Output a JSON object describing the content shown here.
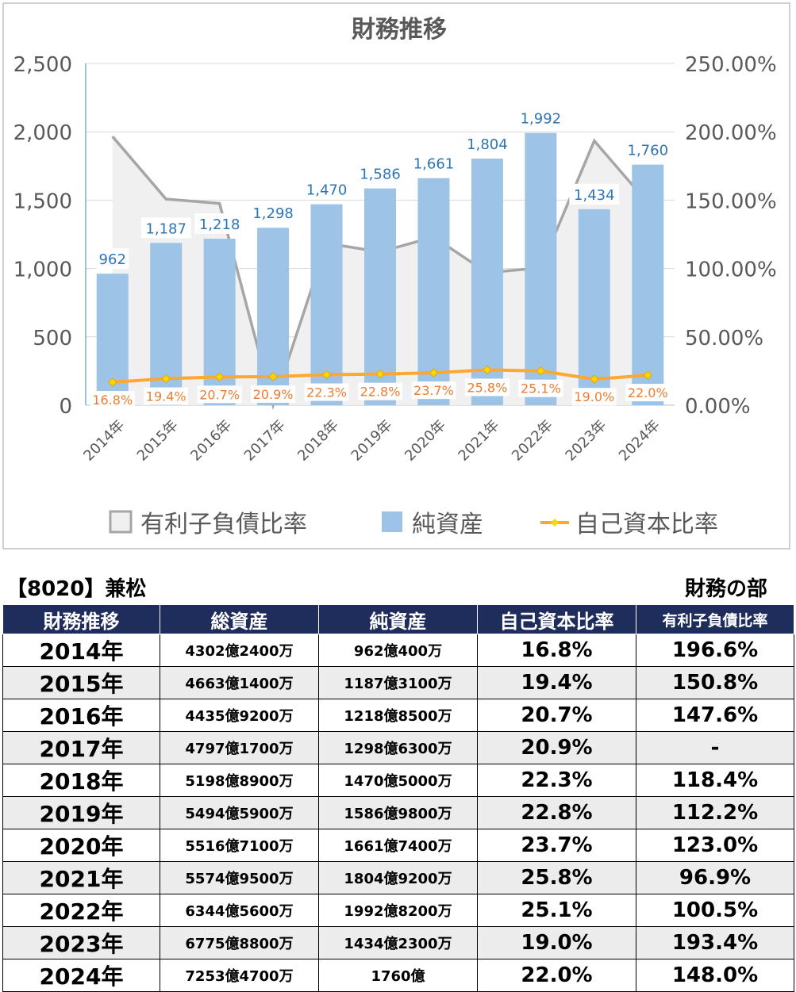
{
  "chart_data": {
    "type": "bar",
    "title": "財務推移",
    "categories": [
      "2014年",
      "2015年",
      "2016年",
      "2017年",
      "2018年",
      "2019年",
      "2020年",
      "2021年",
      "2022年",
      "2023年",
      "2024年"
    ],
    "left_axis": {
      "ticks": [
        "0",
        "500",
        "1,000",
        "1,500",
        "2,000",
        "2,500"
      ],
      "range": [
        0,
        2500
      ]
    },
    "right_axis": {
      "ticks": [
        "0.00%",
        "50.00%",
        "100.00%",
        "150.00%",
        "200.00%",
        "250.00%"
      ],
      "range": [
        0,
        250
      ]
    },
    "series": [
      {
        "name": "有利子負債比率",
        "kind": "area",
        "axis": "right",
        "color": "#a6a6a6",
        "fill": "#f0f0f0",
        "values": [
          196.6,
          150.8,
          147.6,
          0,
          118.4,
          112.2,
          123.0,
          96.9,
          100.5,
          193.4,
          148.0
        ]
      },
      {
        "name": "純資産",
        "kind": "bar",
        "axis": "left",
        "color": "#9dc3e6",
        "values": [
          962,
          1187,
          1218,
          1298,
          1470,
          1586,
          1661,
          1804,
          1992,
          1434,
          1760
        ],
        "labels": [
          "962",
          "1,187",
          "1,218",
          "1,298",
          "1,470",
          "1,586",
          "1,661",
          "1,804",
          "1,992",
          "1,434",
          "1,760"
        ],
        "label_color": "#2e75b6"
      },
      {
        "name": "自己資本比率",
        "kind": "line",
        "axis": "right",
        "color": "#ffa733",
        "marker": "#ffd700",
        "values": [
          16.8,
          19.4,
          20.7,
          20.9,
          22.3,
          22.8,
          23.7,
          25.8,
          25.1,
          19.0,
          22.0
        ],
        "labels": [
          "16.8%",
          "19.4%",
          "20.7%",
          "20.9%",
          "22.3%",
          "22.8%",
          "23.7%",
          "25.8%",
          "25.1%",
          "19.0%",
          "22.0%"
        ],
        "label_color": "#ed7d31"
      }
    ],
    "legend_position": "bottom",
    "grid": true
  },
  "table": {
    "company": "【8020】兼松",
    "section": "財務の部",
    "headers": [
      "財務推移",
      "総資産",
      "純資産",
      "自己資本比率",
      "有利子負債比率"
    ],
    "rows": [
      [
        "2014年",
        "4302億2400万",
        "962億400万",
        "16.8%",
        "196.6%"
      ],
      [
        "2015年",
        "4663億1400万",
        "1187億3100万",
        "19.4%",
        "150.8%"
      ],
      [
        "2016年",
        "4435億9200万",
        "1218億8500万",
        "20.7%",
        "147.6%"
      ],
      [
        "2017年",
        "4797億1700万",
        "1298億6300万",
        "20.9%",
        "-"
      ],
      [
        "2018年",
        "5198億8900万",
        "1470億5000万",
        "22.3%",
        "118.4%"
      ],
      [
        "2019年",
        "5494億5900万",
        "1586億9800万",
        "22.8%",
        "112.2%"
      ],
      [
        "2020年",
        "5516億7100万",
        "1661億7400万",
        "23.7%",
        "123.0%"
      ],
      [
        "2021年",
        "5574億9500万",
        "1804億9200万",
        "25.8%",
        "96.9%"
      ],
      [
        "2022年",
        "6344億5600万",
        "1992億8200万",
        "25.1%",
        "100.5%"
      ],
      [
        "2023年",
        "6775億8800万",
        "1434億2300万",
        "19.0%",
        "193.4%"
      ],
      [
        "2024年",
        "7253億4700万",
        "1760億",
        "22.0%",
        "148.0%"
      ]
    ]
  }
}
